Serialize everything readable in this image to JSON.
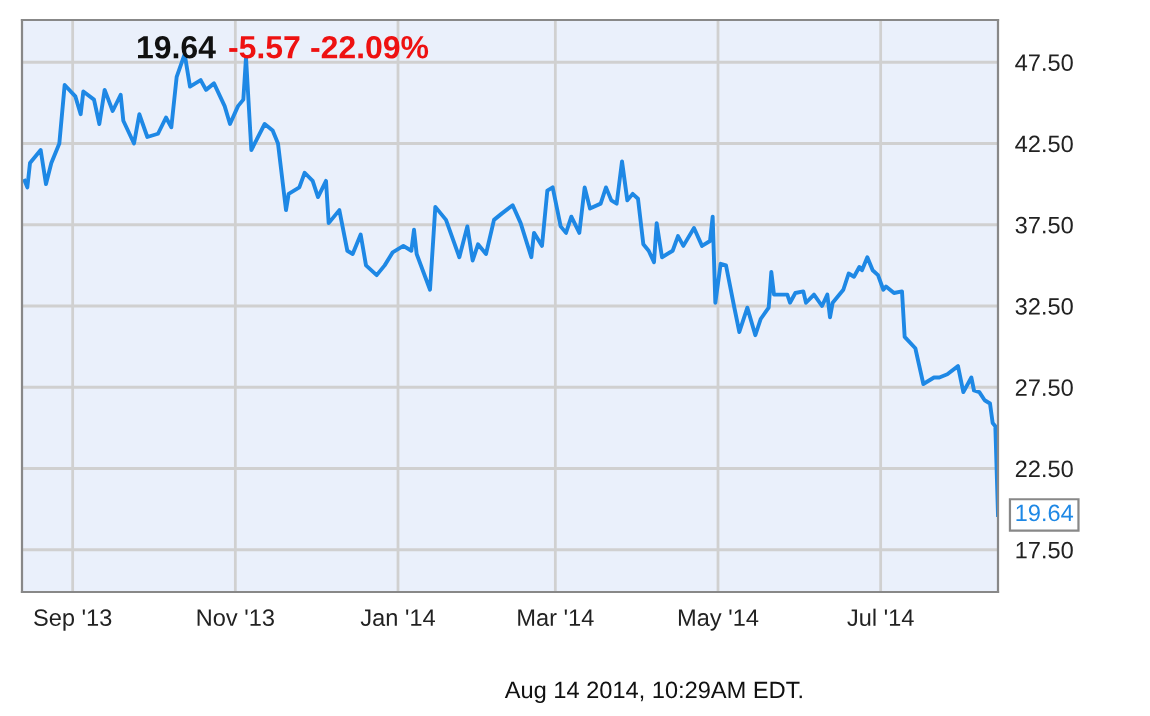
{
  "chart_data": {
    "type": "line",
    "annotations": [
      "19.64",
      "-5.57",
      "-22.09%",
      "Aug 14 2014, 10:29AM EDT."
    ],
    "x": [
      "2013-08-14",
      "2013-08-15",
      "2013-08-16",
      "2013-08-20",
      "2013-08-22",
      "2013-08-24",
      "2013-08-27",
      "2013-08-29",
      "2013-09-02",
      "2013-09-04",
      "2013-09-05",
      "2013-09-09",
      "2013-09-11",
      "2013-09-13",
      "2013-09-16",
      "2013-09-19",
      "2013-09-20",
      "2013-09-24",
      "2013-09-26",
      "2013-09-29",
      "2013-10-03",
      "2013-10-06",
      "2013-10-08",
      "2013-10-10",
      "2013-10-13",
      "2013-10-15",
      "2013-10-19",
      "2013-10-21",
      "2013-10-24",
      "2013-10-28",
      "2013-10-30",
      "2013-11-02",
      "2013-11-04",
      "2013-11-05",
      "2013-11-07",
      "2013-11-12",
      "2013-11-15",
      "2013-11-17",
      "2013-11-20",
      "2013-11-21",
      "2013-11-25",
      "2013-11-27",
      "2013-11-30",
      "2013-12-02",
      "2013-12-05",
      "2013-12-06",
      "2013-12-10",
      "2013-12-13",
      "2013-12-15",
      "2013-12-18",
      "2013-12-20",
      "2013-12-24",
      "2013-12-27",
      "2013-12-30",
      "2014-01-03",
      "2014-01-06",
      "2014-01-07",
      "2014-01-08",
      "2014-01-13",
      "2014-01-15",
      "2014-01-19",
      "2014-01-24",
      "2014-01-27",
      "2014-01-29",
      "2014-01-31",
      "2014-02-03",
      "2014-02-06",
      "2014-02-09",
      "2014-02-13",
      "2014-02-16",
      "2014-02-20",
      "2014-02-21",
      "2014-02-24",
      "2014-02-26",
      "2014-02-28",
      "2014-03-03",
      "2014-03-05",
      "2014-03-07",
      "2014-03-10",
      "2014-03-12",
      "2014-03-14",
      "2014-03-18",
      "2014-03-20",
      "2014-03-22",
      "2014-03-24",
      "2014-03-26",
      "2014-03-28",
      "2014-03-30",
      "2014-04-01",
      "2014-04-03",
      "2014-04-05",
      "2014-04-07",
      "2014-04-08",
      "2014-04-10",
      "2014-04-14",
      "2014-04-16",
      "2014-04-18",
      "2014-04-22",
      "2014-04-25",
      "2014-04-28",
      "2014-04-29",
      "2014-04-30",
      "2014-05-02",
      "2014-05-04",
      "2014-05-07",
      "2014-05-09",
      "2014-05-12",
      "2014-05-15",
      "2014-05-17",
      "2014-05-20",
      "2014-05-21",
      "2014-05-22",
      "2014-05-27",
      "2014-05-28",
      "2014-05-30",
      "2014-06-02",
      "2014-06-03",
      "2014-06-06",
      "2014-06-09",
      "2014-06-11",
      "2014-06-12",
      "2014-06-13",
      "2014-06-17",
      "2014-06-19",
      "2014-06-21",
      "2014-06-23",
      "2014-06-24",
      "2014-06-26",
      "2014-06-28",
      "2014-06-30",
      "2014-07-02",
      "2014-07-03",
      "2014-07-06",
      "2014-07-09",
      "2014-07-10",
      "2014-07-14",
      "2014-07-17",
      "2014-07-21",
      "2014-07-23",
      "2014-07-26",
      "2014-07-30",
      "2014-08-01",
      "2014-08-04",
      "2014-08-05",
      "2014-08-07",
      "2014-08-09",
      "2014-08-11",
      "2014-08-12",
      "2014-08-13",
      "2014-08-14"
    ],
    "series": [
      {
        "color": "#1e88e5",
        "values": [
          40.2,
          39.8,
          41.3,
          42.1,
          40.0,
          41.3,
          42.5,
          46.1,
          45.4,
          44.3,
          45.7,
          45.2,
          43.7,
          45.8,
          44.5,
          45.5,
          43.9,
          42.5,
          44.3,
          42.9,
          43.1,
          44.1,
          43.5,
          46.6,
          48.0,
          46.0,
          46.4,
          45.8,
          46.2,
          44.8,
          43.7,
          44.8,
          45.2,
          47.8,
          42.1,
          43.7,
          43.3,
          42.5,
          38.4,
          39.4,
          39.8,
          40.7,
          40.2,
          39.2,
          40.2,
          37.6,
          38.4,
          35.9,
          35.7,
          36.9,
          35.0,
          34.4,
          35.0,
          35.8,
          36.2,
          35.9,
          37.2,
          35.7,
          33.5,
          38.6,
          37.8,
          35.5,
          37.4,
          35.3,
          36.3,
          35.7,
          37.8,
          38.2,
          38.7,
          37.6,
          35.5,
          37.0,
          36.2,
          39.6,
          39.8,
          37.4,
          37.0,
          38.0,
          37.0,
          39.8,
          38.5,
          38.8,
          39.8,
          39.0,
          38.8,
          41.4,
          39.0,
          39.4,
          39.1,
          36.3,
          35.9,
          35.2,
          37.6,
          35.5,
          35.9,
          36.8,
          36.2,
          37.3,
          36.2,
          36.5,
          38.0,
          32.7,
          35.1,
          35.0,
          32.5,
          30.9,
          32.4,
          30.7,
          31.7,
          32.4,
          34.6,
          33.2,
          33.2,
          32.7,
          33.3,
          33.4,
          32.7,
          33.2,
          32.5,
          33.2,
          31.8,
          32.7,
          33.5,
          34.5,
          34.3,
          34.9,
          34.7,
          35.5,
          34.7,
          34.4,
          33.5,
          33.7,
          33.3,
          33.4,
          30.6,
          29.9,
          27.7,
          28.1,
          28.1,
          28.3,
          28.8,
          27.2,
          28.1,
          27.3,
          27.2,
          26.7,
          26.5,
          25.3,
          25.1,
          19.64
        ],
        "value_labels": [
          null,
          null,
          null,
          null,
          null,
          null,
          null,
          null,
          null,
          null,
          null,
          null,
          null,
          null,
          null,
          null,
          null,
          null,
          null,
          null,
          null,
          null,
          null,
          null,
          null,
          null,
          null,
          null,
          null,
          null,
          null,
          null,
          null,
          null,
          null,
          null,
          null,
          null,
          null,
          null,
          null,
          null,
          null,
          null,
          null,
          null,
          null,
          null,
          null,
          null,
          null,
          null,
          null,
          null,
          null,
          null,
          null,
          null,
          null,
          null,
          null,
          null,
          null,
          null,
          null,
          null,
          null,
          null,
          null,
          null,
          null,
          null,
          null,
          null,
          null,
          null,
          null,
          null,
          null,
          null,
          null,
          null,
          null,
          null,
          null,
          null,
          null,
          null,
          null,
          null,
          null,
          null,
          null,
          null,
          null,
          null,
          null,
          null,
          null,
          null,
          null,
          null,
          null,
          null,
          null,
          null,
          null,
          null,
          null,
          null,
          null,
          null,
          null,
          null,
          null,
          null,
          null,
          null,
          null,
          null,
          null,
          null,
          null,
          null,
          null,
          null,
          null,
          null,
          null,
          null,
          null,
          null,
          null,
          null,
          null,
          null,
          null,
          null,
          null,
          null,
          null,
          null,
          null,
          null,
          null,
          null,
          null,
          null,
          null,
          "19.64"
        ]
      }
    ],
    "xlim": [
      "2013-08-13",
      "2014-08-14"
    ],
    "xticks": [
      {
        "value": "2013-09-01",
        "label": "Sep '13"
      },
      {
        "value": "2013-11-01",
        "label": "Nov '13"
      },
      {
        "value": "2014-01-01",
        "label": "Jan '14"
      },
      {
        "value": "2014-03-01",
        "label": "Mar '14"
      },
      {
        "value": "2014-05-01",
        "label": "May '14"
      },
      {
        "value": "2014-07-01",
        "label": "Jul '14"
      }
    ],
    "ylim": [
      14.9,
      50.1
    ],
    "yticks": [
      {
        "value": 17.5,
        "label": "17.50"
      },
      {
        "value": 22.5,
        "label": "22.50"
      },
      {
        "value": 27.5,
        "label": "27.50"
      },
      {
        "value": 32.5,
        "label": "32.50"
      },
      {
        "value": 37.5,
        "label": "37.50"
      },
      {
        "value": 42.5,
        "label": "42.50"
      },
      {
        "value": 47.5,
        "label": "47.50"
      }
    ],
    "grid": true
  }
}
